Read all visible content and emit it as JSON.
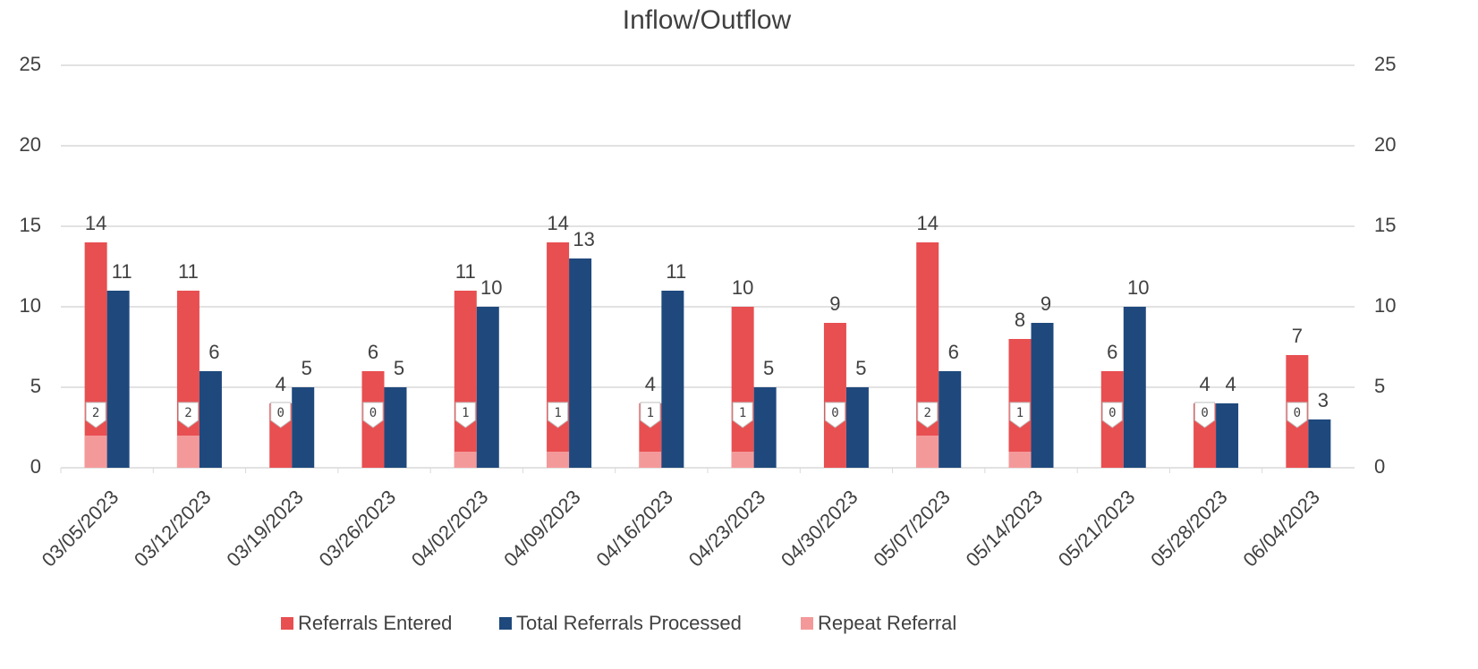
{
  "chart_data": {
    "type": "bar",
    "title": "Inflow/Outflow",
    "categories": [
      "03/05/2023",
      "03/12/2023",
      "03/19/2023",
      "03/26/2023",
      "04/02/2023",
      "04/09/2023",
      "04/16/2023",
      "04/23/2023",
      "04/30/2023",
      "05/07/2023",
      "05/14/2023",
      "05/21/2023",
      "05/28/2023",
      "06/04/2023"
    ],
    "series": [
      {
        "name": "Referrals Entered",
        "color": "#e84f51",
        "values": [
          14,
          11,
          4,
          6,
          11,
          14,
          4,
          10,
          9,
          14,
          8,
          6,
          4,
          7
        ]
      },
      {
        "name": "Total Referrals Processed",
        "color": "#1f497d",
        "values": [
          11,
          6,
          5,
          5,
          10,
          13,
          11,
          5,
          5,
          6,
          9,
          10,
          4,
          3
        ]
      },
      {
        "name": "Repeat Referral",
        "color": "#f4999a",
        "axis": "y2",
        "values": [
          2,
          2,
          0,
          0,
          1,
          1,
          1,
          1,
          0,
          2,
          1,
          0,
          0,
          0
        ]
      }
    ],
    "ylim": [
      0,
      25
    ],
    "yticks": [
      0,
      5,
      10,
      15,
      20,
      25
    ],
    "y2lim": [
      0,
      25
    ],
    "y2ticks": [
      0,
      5,
      10,
      15,
      20,
      25
    ],
    "grid": true,
    "legend": "bottom"
  }
}
